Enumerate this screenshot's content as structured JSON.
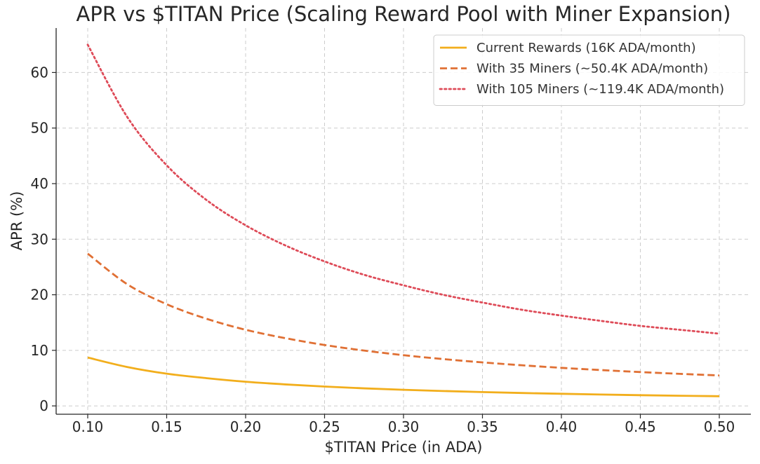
{
  "chart_data": {
    "type": "line",
    "title": "APR vs $TITAN Price (Scaling Reward Pool with Miner Expansion)",
    "xlabel": "$TITAN Price (in ADA)",
    "ylabel": "APR (%)",
    "xlim": [
      0.08,
      0.52
    ],
    "ylim": [
      -1.5,
      68
    ],
    "xticks": [
      0.1,
      0.15,
      0.2,
      0.25,
      0.3,
      0.35,
      0.4,
      0.45,
      0.5
    ],
    "xtick_labels": [
      "0.10",
      "0.15",
      "0.20",
      "0.25",
      "0.30",
      "0.35",
      "0.40",
      "0.45",
      "0.50"
    ],
    "yticks": [
      0,
      10,
      20,
      30,
      40,
      50,
      60
    ],
    "ytick_labels": [
      "0",
      "10",
      "20",
      "30",
      "40",
      "50",
      "60"
    ],
    "grid": true,
    "legend_position": "top-right",
    "x": [
      0.1,
      0.125,
      0.15,
      0.175,
      0.2,
      0.225,
      0.25,
      0.275,
      0.3,
      0.325,
      0.35,
      0.375,
      0.4,
      0.425,
      0.45,
      0.475,
      0.5
    ],
    "series": [
      {
        "name": "Current Rewards (16K ADA/month)",
        "color": "#f2ae1c",
        "dash": "solid",
        "values": [
          8.7,
          7.0,
          5.8,
          5.0,
          4.35,
          3.87,
          3.48,
          3.16,
          2.9,
          2.68,
          2.49,
          2.32,
          2.18,
          2.05,
          1.93,
          1.83,
          1.74
        ]
      },
      {
        "name": "With 35 Miners (~50.4K ADA/month)",
        "color": "#e07034",
        "dash": "dashed",
        "values": [
          27.4,
          21.9,
          18.3,
          15.7,
          13.7,
          12.2,
          10.96,
          9.96,
          9.13,
          8.43,
          7.83,
          7.31,
          6.85,
          6.45,
          6.09,
          5.77,
          5.48
        ]
      },
      {
        "name": "With 105 Miners (~119.4K ADA/month)",
        "color": "#de4b58",
        "dash": "dotted",
        "values": [
          65.0,
          52.0,
          43.3,
          37.1,
          32.5,
          28.9,
          26.0,
          23.6,
          21.7,
          20.0,
          18.6,
          17.3,
          16.25,
          15.3,
          14.4,
          13.7,
          13.0
        ]
      }
    ]
  }
}
